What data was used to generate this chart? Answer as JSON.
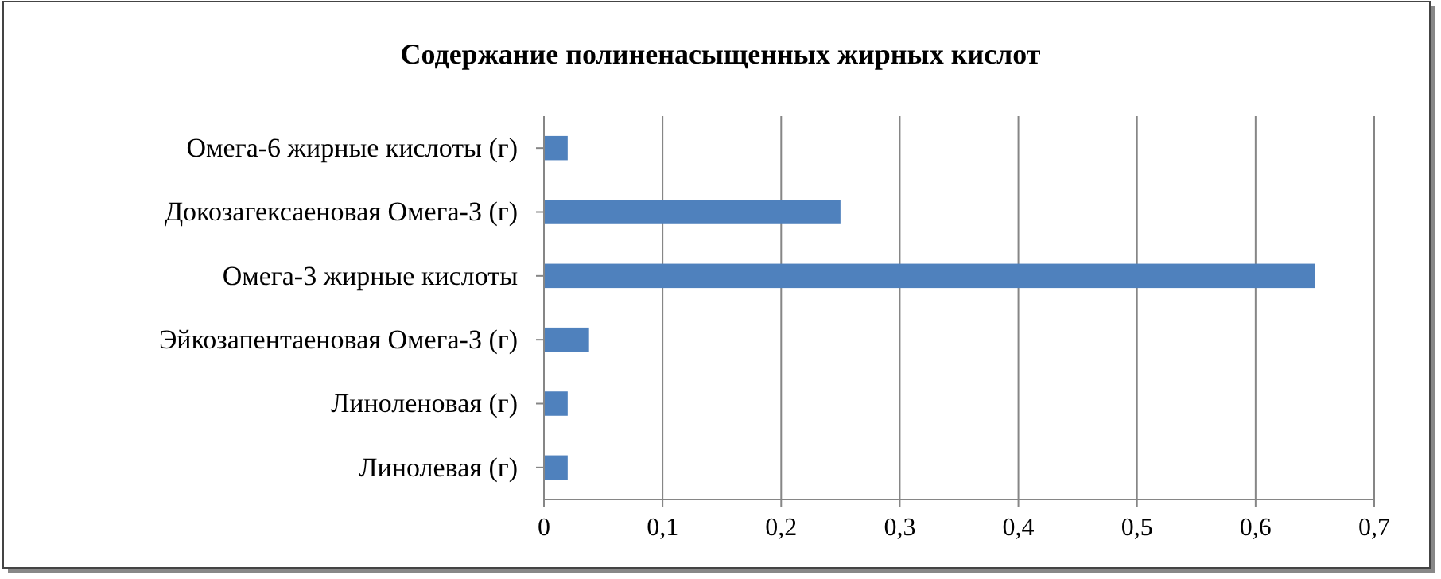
{
  "chart_data": {
    "type": "bar",
    "orientation": "horizontal",
    "title": "Содержание полиненасыщенных жирных кислот",
    "categories": [
      "Омега-6 жирные кислоты (г)",
      "Докозагексаеновая Омега-3 (г)",
      "Омега-3 жирные кислоты",
      "Эйкозапентаеновая Омега-3 (г)",
      "Линоленовая (г)",
      "Линолевая (г)"
    ],
    "values": [
      0.02,
      0.25,
      0.65,
      0.038,
      0.02,
      0.02
    ],
    "color": "#4f81bd",
    "xlim": [
      0,
      0.7
    ],
    "xticks": [
      {
        "value": 0,
        "label": "0"
      },
      {
        "value": 0.1,
        "label": "0,1"
      },
      {
        "value": 0.2,
        "label": "0,2"
      },
      {
        "value": 0.3,
        "label": "0,3"
      },
      {
        "value": 0.4,
        "label": "0,4"
      },
      {
        "value": 0.5,
        "label": "0,5"
      },
      {
        "value": 0.6,
        "label": "0,6"
      },
      {
        "value": 0.7,
        "label": "0,7"
      }
    ],
    "grid": "x"
  }
}
